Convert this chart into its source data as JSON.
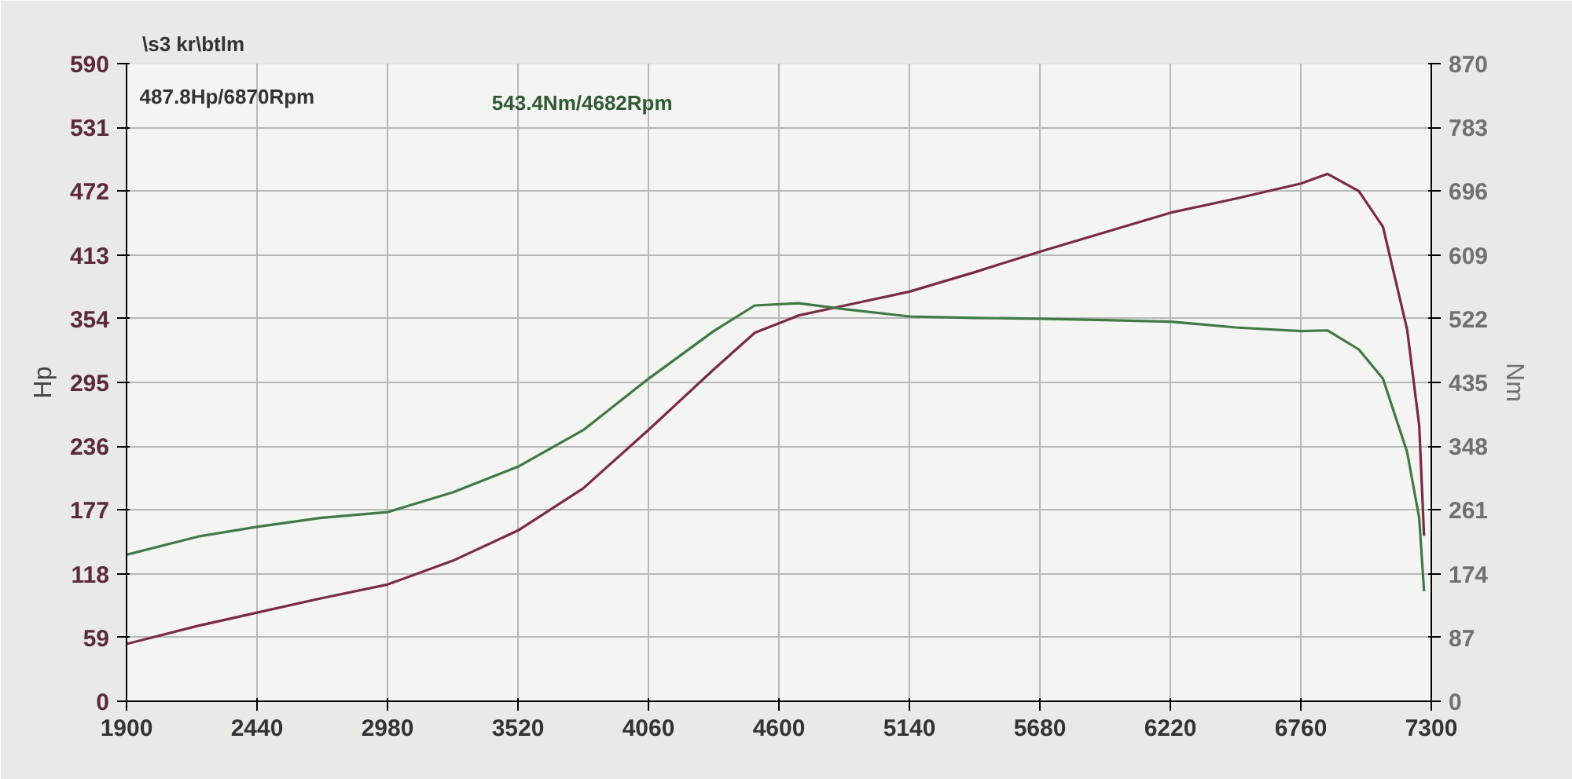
{
  "chart_data": {
    "type": "line",
    "ylabel": "Hp",
    "y2label": "Nm",
    "annotations": [
      "\\s3 kr\\btlm",
      "487.8Hp/6870Rpm",
      "543.4Nm/4682Rpm"
    ],
    "xlim": [
      1900,
      7300
    ],
    "xticks": [
      1900,
      2440,
      2980,
      3520,
      4060,
      4600,
      5140,
      5680,
      6220,
      6760,
      7300
    ],
    "ylim": [
      0,
      590
    ],
    "yticks": [
      0,
      59,
      118,
      177,
      236,
      295,
      354,
      413,
      472,
      531,
      590
    ],
    "y2lim": [
      0,
      870
    ],
    "y2ticks": [
      0,
      87,
      174,
      261,
      348,
      435,
      522,
      609,
      696,
      783,
      870
    ],
    "x": [
      1900,
      2200,
      2440,
      2700,
      2980,
      3250,
      3520,
      3790,
      4060,
      4330,
      4500,
      4682,
      4870,
      5140,
      5410,
      5680,
      5950,
      6220,
      6490,
      6760,
      6870,
      7000,
      7100,
      7200,
      7250,
      7270
    ],
    "series": [
      {
        "color": "#7a2a45",
        "values": [
          53,
          70,
          82,
          95,
          108,
          130,
          158,
          197,
          251,
          307,
          341,
          357,
          366,
          379,
          397,
          416,
          434,
          452,
          465,
          479,
          488,
          472,
          439,
          344,
          255,
          153
        ]
      },
      {
        "color": "#3f7a45",
        "axis": "y2",
        "values": [
          200,
          225,
          238,
          250,
          258,
          285,
          320,
          370,
          440,
          505,
          540,
          543,
          535,
          525,
          523,
          522,
          520,
          518,
          510,
          505,
          506,
          480,
          440,
          340,
          250,
          150
        ]
      }
    ],
    "grid": true,
    "marker": "none",
    "line_style": "solid"
  }
}
